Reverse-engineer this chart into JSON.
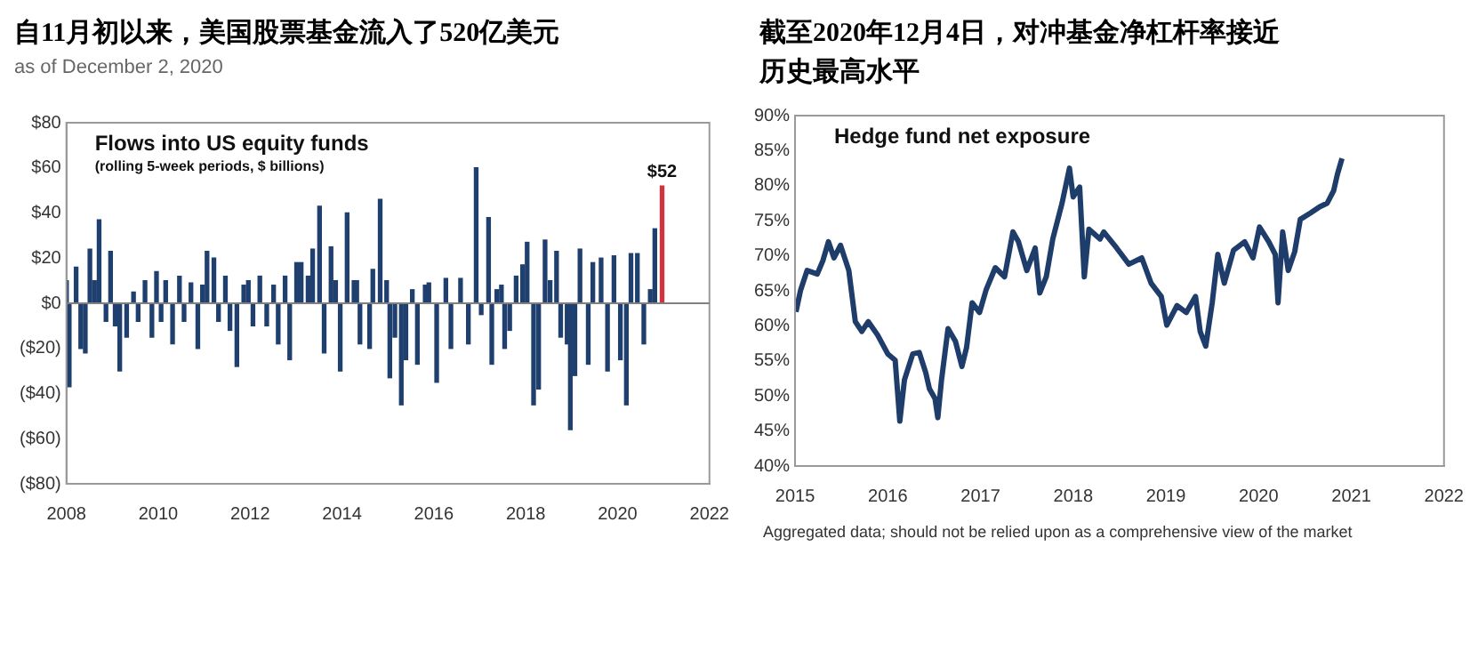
{
  "chart_data": [
    {
      "type": "bar",
      "title": "自11月初以来，美国股票基金流入了520亿美元",
      "subtitle": "as of December 2, 2020",
      "annotations": [
        "Flows into US equity funds",
        "(rolling 5-week periods, $ billions)"
      ],
      "xlim": [
        2008,
        2022
      ],
      "xticks": [
        2008,
        2010,
        2012,
        2014,
        2016,
        2018,
        2020,
        2022
      ],
      "ylim": [
        -80,
        80
      ],
      "yticks": [
        {
          "value": -80,
          "label": "($80)"
        },
        {
          "value": -60,
          "label": "($60)"
        },
        {
          "value": -40,
          "label": "($40)"
        },
        {
          "value": -20,
          "label": "($20)"
        },
        {
          "value": 0,
          "label": "$0"
        },
        {
          "value": 20,
          "label": "$20"
        },
        {
          "value": 40,
          "label": "$40"
        },
        {
          "value": 60,
          "label": "$60"
        },
        {
          "value": 80,
          "label": "$80"
        }
      ],
      "grid": false,
      "legend": false,
      "ref_lines": [
        {
          "axis": "y",
          "value": 0,
          "color": "#808080"
        }
      ],
      "series": [
        {
          "color": "#1f3f6e",
          "x": [
            2008.04,
            2008.1,
            2008.25,
            2008.35,
            2008.45,
            2008.55,
            2008.65,
            2008.75,
            2008.9,
            2009.0,
            2009.1,
            2009.2,
            2009.35,
            2009.5,
            2009.6,
            2009.75,
            2009.9,
            2010.0,
            2010.1,
            2010.2,
            2010.35,
            2010.5,
            2010.6,
            2010.75,
            2010.9,
            2011.0,
            2011.1,
            2011.25,
            2011.35,
            2011.5,
            2011.6,
            2011.75,
            2011.9,
            2012.0,
            2012.1,
            2012.25,
            2012.4,
            2012.55,
            2012.65,
            2012.8,
            2012.9,
            2013.05,
            2013.15,
            2013.3,
            2013.4,
            2013.55,
            2013.65,
            2013.8,
            2013.9,
            2014.0,
            2014.15,
            2014.3,
            2014.36,
            2014.43,
            2014.64,
            2014.71,
            2014.87,
            2015.01,
            2015.08,
            2015.19,
            2015.33,
            2015.43,
            2015.57,
            2015.68,
            2015.85,
            2015.93,
            2016.1,
            2016.3,
            2016.41,
            2016.62,
            2016.79,
            2016.96,
            2017.07,
            2017.23,
            2017.3,
            2017.41,
            2017.51,
            2017.58,
            2017.69,
            2017.83,
            2017.97,
            2018.07,
            2018.21,
            2018.32,
            2018.46,
            2018.57,
            2018.71,
            2018.8,
            2018.94,
            2019.01,
            2019.11,
            2019.22,
            2019.4,
            2019.5,
            2019.68,
            2019.82,
            2019.96,
            2020.1,
            2020.23,
            2020.33,
            2020.47,
            2020.61,
            2020.75,
            2020.85
          ],
          "values": [
            10,
            -37,
            16,
            -20,
            -22,
            24,
            10,
            37,
            -8,
            23,
            -10,
            -30,
            -15,
            5,
            -8,
            10,
            -15,
            14,
            -8,
            10,
            -18,
            12,
            -8,
            9,
            -20,
            8,
            23,
            20,
            -8,
            12,
            -12,
            -28,
            8,
            10,
            -10,
            12,
            -10,
            8,
            -18,
            12,
            -25,
            18,
            18,
            12,
            24,
            43,
            -22,
            25,
            10,
            -30,
            40,
            10,
            10,
            -18,
            -20,
            15,
            46,
            10,
            -33,
            -15,
            -45,
            -25,
            6,
            -27,
            8,
            9,
            -35,
            11,
            -20,
            11,
            -18,
            60,
            -5,
            38,
            -27,
            6,
            8,
            -20,
            -12,
            12,
            17,
            27,
            -45,
            -38,
            28,
            10,
            23,
            -15,
            -18,
            -56,
            -32,
            24,
            -27,
            18,
            20,
            -30,
            21,
            -25,
            -45,
            22,
            22,
            -18,
            6,
            33
          ]
        },
        {
          "color": "#d0343f",
          "x": [
            2020.93
          ],
          "values": [
            52
          ],
          "value_labels": [
            "$52"
          ]
        }
      ]
    },
    {
      "type": "line",
      "title": "截至2020年12月4日，对冲基金净杠杆率接近历史最高水平",
      "annotations": [
        "Hedge fund net exposure",
        "Aggregated data; should not be relied upon as a comprehensive view of the market"
      ],
      "xlim": [
        2015,
        2022
      ],
      "xticks": [
        2015,
        2016,
        2017,
        2018,
        2019,
        2020,
        2021,
        2022
      ],
      "ylim": [
        40,
        90
      ],
      "yticks": [
        {
          "value": 40,
          "label": "40%"
        },
        {
          "value": 45,
          "label": "45%"
        },
        {
          "value": 50,
          "label": "50%"
        },
        {
          "value": 55,
          "label": "55%"
        },
        {
          "value": 60,
          "label": "60%"
        },
        {
          "value": 65,
          "label": "65%"
        },
        {
          "value": 70,
          "label": "70%"
        },
        {
          "value": 75,
          "label": "75%"
        },
        {
          "value": 80,
          "label": "80%"
        },
        {
          "value": 85,
          "label": "85%"
        },
        {
          "value": 90,
          "label": "90%"
        }
      ],
      "grid": false,
      "legend": false,
      "marker": "none",
      "line_style": "solid",
      "series": [
        {
          "color": "#1f3d6b",
          "x": [
            2015.01,
            2015.06,
            2015.13,
            2015.24,
            2015.3,
            2015.36,
            2015.42,
            2015.49,
            2015.58,
            2015.65,
            2015.72,
            2015.79,
            2015.89,
            2016.0,
            2016.08,
            2016.13,
            2016.18,
            2016.27,
            2016.34,
            2016.41,
            2016.45,
            2016.51,
            2016.54,
            2016.58,
            2016.65,
            2016.73,
            2016.8,
            2016.85,
            2016.91,
            2016.99,
            2017.06,
            2017.16,
            2017.26,
            2017.35,
            2017.41,
            2017.5,
            2017.59,
            2017.64,
            2017.71,
            2017.78,
            2017.88,
            2017.96,
            2018.0,
            2018.07,
            2018.12,
            2018.17,
            2018.29,
            2018.33,
            2018.47,
            2018.6,
            2018.74,
            2018.84,
            2018.95,
            2019.01,
            2019.12,
            2019.22,
            2019.32,
            2019.37,
            2019.43,
            2019.5,
            2019.56,
            2019.63,
            2019.73,
            2019.85,
            2019.94,
            2020.01,
            2020.11,
            2020.18,
            2020.21,
            2020.26,
            2020.32,
            2020.39,
            2020.45,
            2020.56,
            2020.66,
            2020.74,
            2020.81,
            2020.85,
            2020.9
          ],
          "values": [
            62,
            65.1,
            67.9,
            67.4,
            69.3,
            72,
            69.7,
            71.5,
            67.9,
            60.6,
            59.2,
            60.6,
            58.7,
            56,
            55.1,
            46.4,
            52.3,
            56,
            56.2,
            53.3,
            51,
            49.6,
            46.9,
            52.3,
            59.6,
            57.8,
            54.2,
            56.9,
            63.3,
            61.9,
            65.1,
            68.3,
            67,
            73.4,
            72,
            67.9,
            71.1,
            64.7,
            67,
            72.4,
            77.5,
            82.5,
            78.4,
            79.8,
            67,
            73.8,
            72.4,
            73.4,
            71.1,
            68.8,
            69.7,
            66.1,
            64.2,
            60.1,
            62.9,
            61.9,
            64.2,
            59.2,
            57.1,
            63.3,
            70.2,
            66.1,
            70.8,
            72,
            69.7,
            74.1,
            72,
            70.2,
            63.3,
            73.4,
            67.9,
            70.6,
            75.2,
            76.1,
            77,
            77.5,
            79.3,
            81.6,
            83.9
          ]
        }
      ]
    }
  ]
}
